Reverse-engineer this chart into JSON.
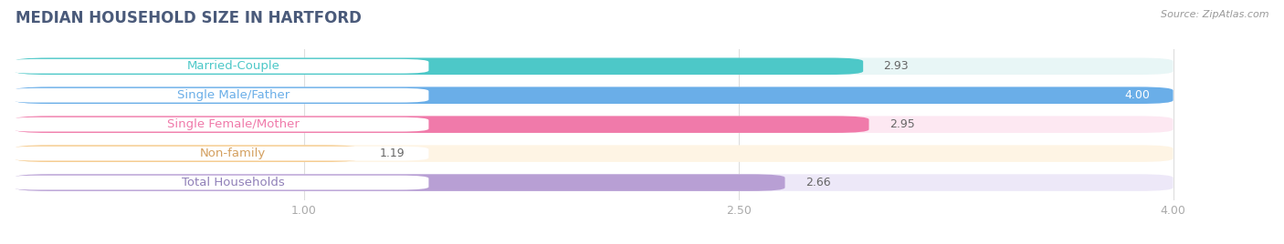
{
  "title": "MEDIAN HOUSEHOLD SIZE IN HARTFORD",
  "source": "Source: ZipAtlas.com",
  "categories": [
    "Married-Couple",
    "Single Male/Father",
    "Single Female/Mother",
    "Non-family",
    "Total Households"
  ],
  "values": [
    2.93,
    4.0,
    2.95,
    1.19,
    2.66
  ],
  "bar_colors": [
    "#4dc8c8",
    "#6aaee8",
    "#f07aaa",
    "#f5c98a",
    "#b89fd4"
  ],
  "bar_bg_colors": [
    "#e8f6f6",
    "#ddeeff",
    "#fde8f2",
    "#fef4e4",
    "#ede8f8"
  ],
  "label_text_colors": [
    "#4dc8c8",
    "#6aaee8",
    "#f07aaa",
    "#d4a060",
    "#9080b8"
  ],
  "xmin": 0.0,
  "xmax": 4.0,
  "xlim_left": -0.05,
  "xlim_right": 4.25,
  "xticks": [
    1.0,
    2.5,
    4.0
  ],
  "xtick_labels": [
    "1.00",
    "2.50",
    "4.00"
  ],
  "title_fontsize": 12,
  "label_fontsize": 9.5,
  "value_fontsize": 9,
  "bar_height": 0.58,
  "background_color": "#ffffff",
  "title_color": "#4a5a7a",
  "source_color": "#999999",
  "value_colors": [
    "#555555",
    "#ffffff",
    "#555555",
    "#999999",
    "#555555"
  ]
}
